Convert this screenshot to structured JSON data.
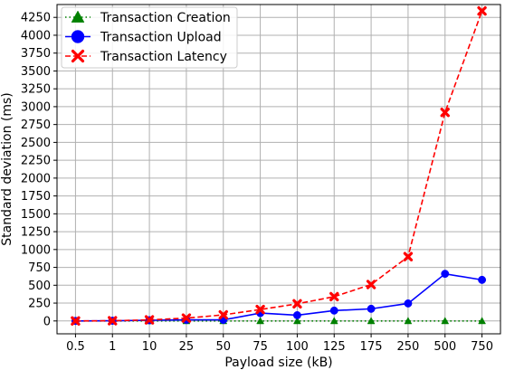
{
  "chart_data": {
    "type": "line",
    "xlabel": "Payload size (kB)",
    "ylabel": "Standard deviation (ms)",
    "categories": [
      "0.5",
      "1",
      "10",
      "25",
      "50",
      "75",
      "100",
      "125",
      "175",
      "250",
      "500",
      "750"
    ],
    "ylim": [
      -180,
      4430
    ],
    "yticks": [
      0,
      250,
      500,
      750,
      1000,
      1250,
      1500,
      1750,
      2000,
      2250,
      2500,
      2750,
      3000,
      3250,
      3500,
      3750,
      4000,
      4250
    ],
    "grid": true,
    "legend_position": "top-left",
    "series": [
      {
        "name": "Transaction Creation",
        "color": "#008000",
        "line_style": "dotted",
        "marker": "triangle",
        "values": [
          0,
          0,
          0,
          0,
          0,
          0,
          0,
          0,
          0,
          0,
          0,
          0
        ]
      },
      {
        "name": "Transaction Upload",
        "color": "#0000ff",
        "line_style": "solid",
        "marker": "circle",
        "values": [
          0,
          3,
          10,
          15,
          15,
          110,
          80,
          145,
          170,
          245,
          660,
          575
        ]
      },
      {
        "name": "Transaction Latency",
        "color": "#ff0000",
        "line_style": "dashed",
        "marker": "x",
        "values": [
          0,
          3,
          15,
          40,
          85,
          160,
          240,
          340,
          510,
          900,
          2920,
          4340
        ]
      }
    ]
  }
}
